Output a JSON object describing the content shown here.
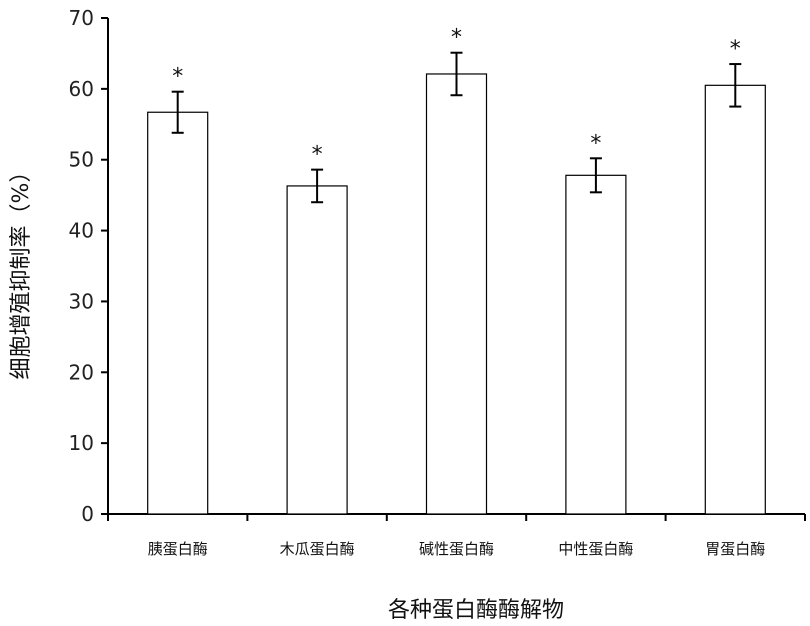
{
  "chart_data": {
    "type": "bar",
    "title": "",
    "xlabel": "各种蛋白酶酶解物",
    "ylabel": "细胞增殖抑制率（%）",
    "ylim": [
      0,
      70
    ],
    "yticks": [
      0,
      10,
      20,
      30,
      40,
      50,
      60,
      70
    ],
    "categories": [
      "胰蛋白酶",
      "木瓜蛋白酶",
      "碱性蛋白酶",
      "中性蛋白酶",
      "胃蛋白酶"
    ],
    "values": [
      56.7,
      46.3,
      62.1,
      47.8,
      60.5
    ],
    "errors": [
      2.9,
      2.3,
      3.0,
      2.4,
      3.0
    ],
    "annotations": [
      "*",
      "*",
      "*",
      "*",
      "*"
    ],
    "grid": false,
    "bar_fill": "#ffffff",
    "bar_stroke": "#000000"
  }
}
